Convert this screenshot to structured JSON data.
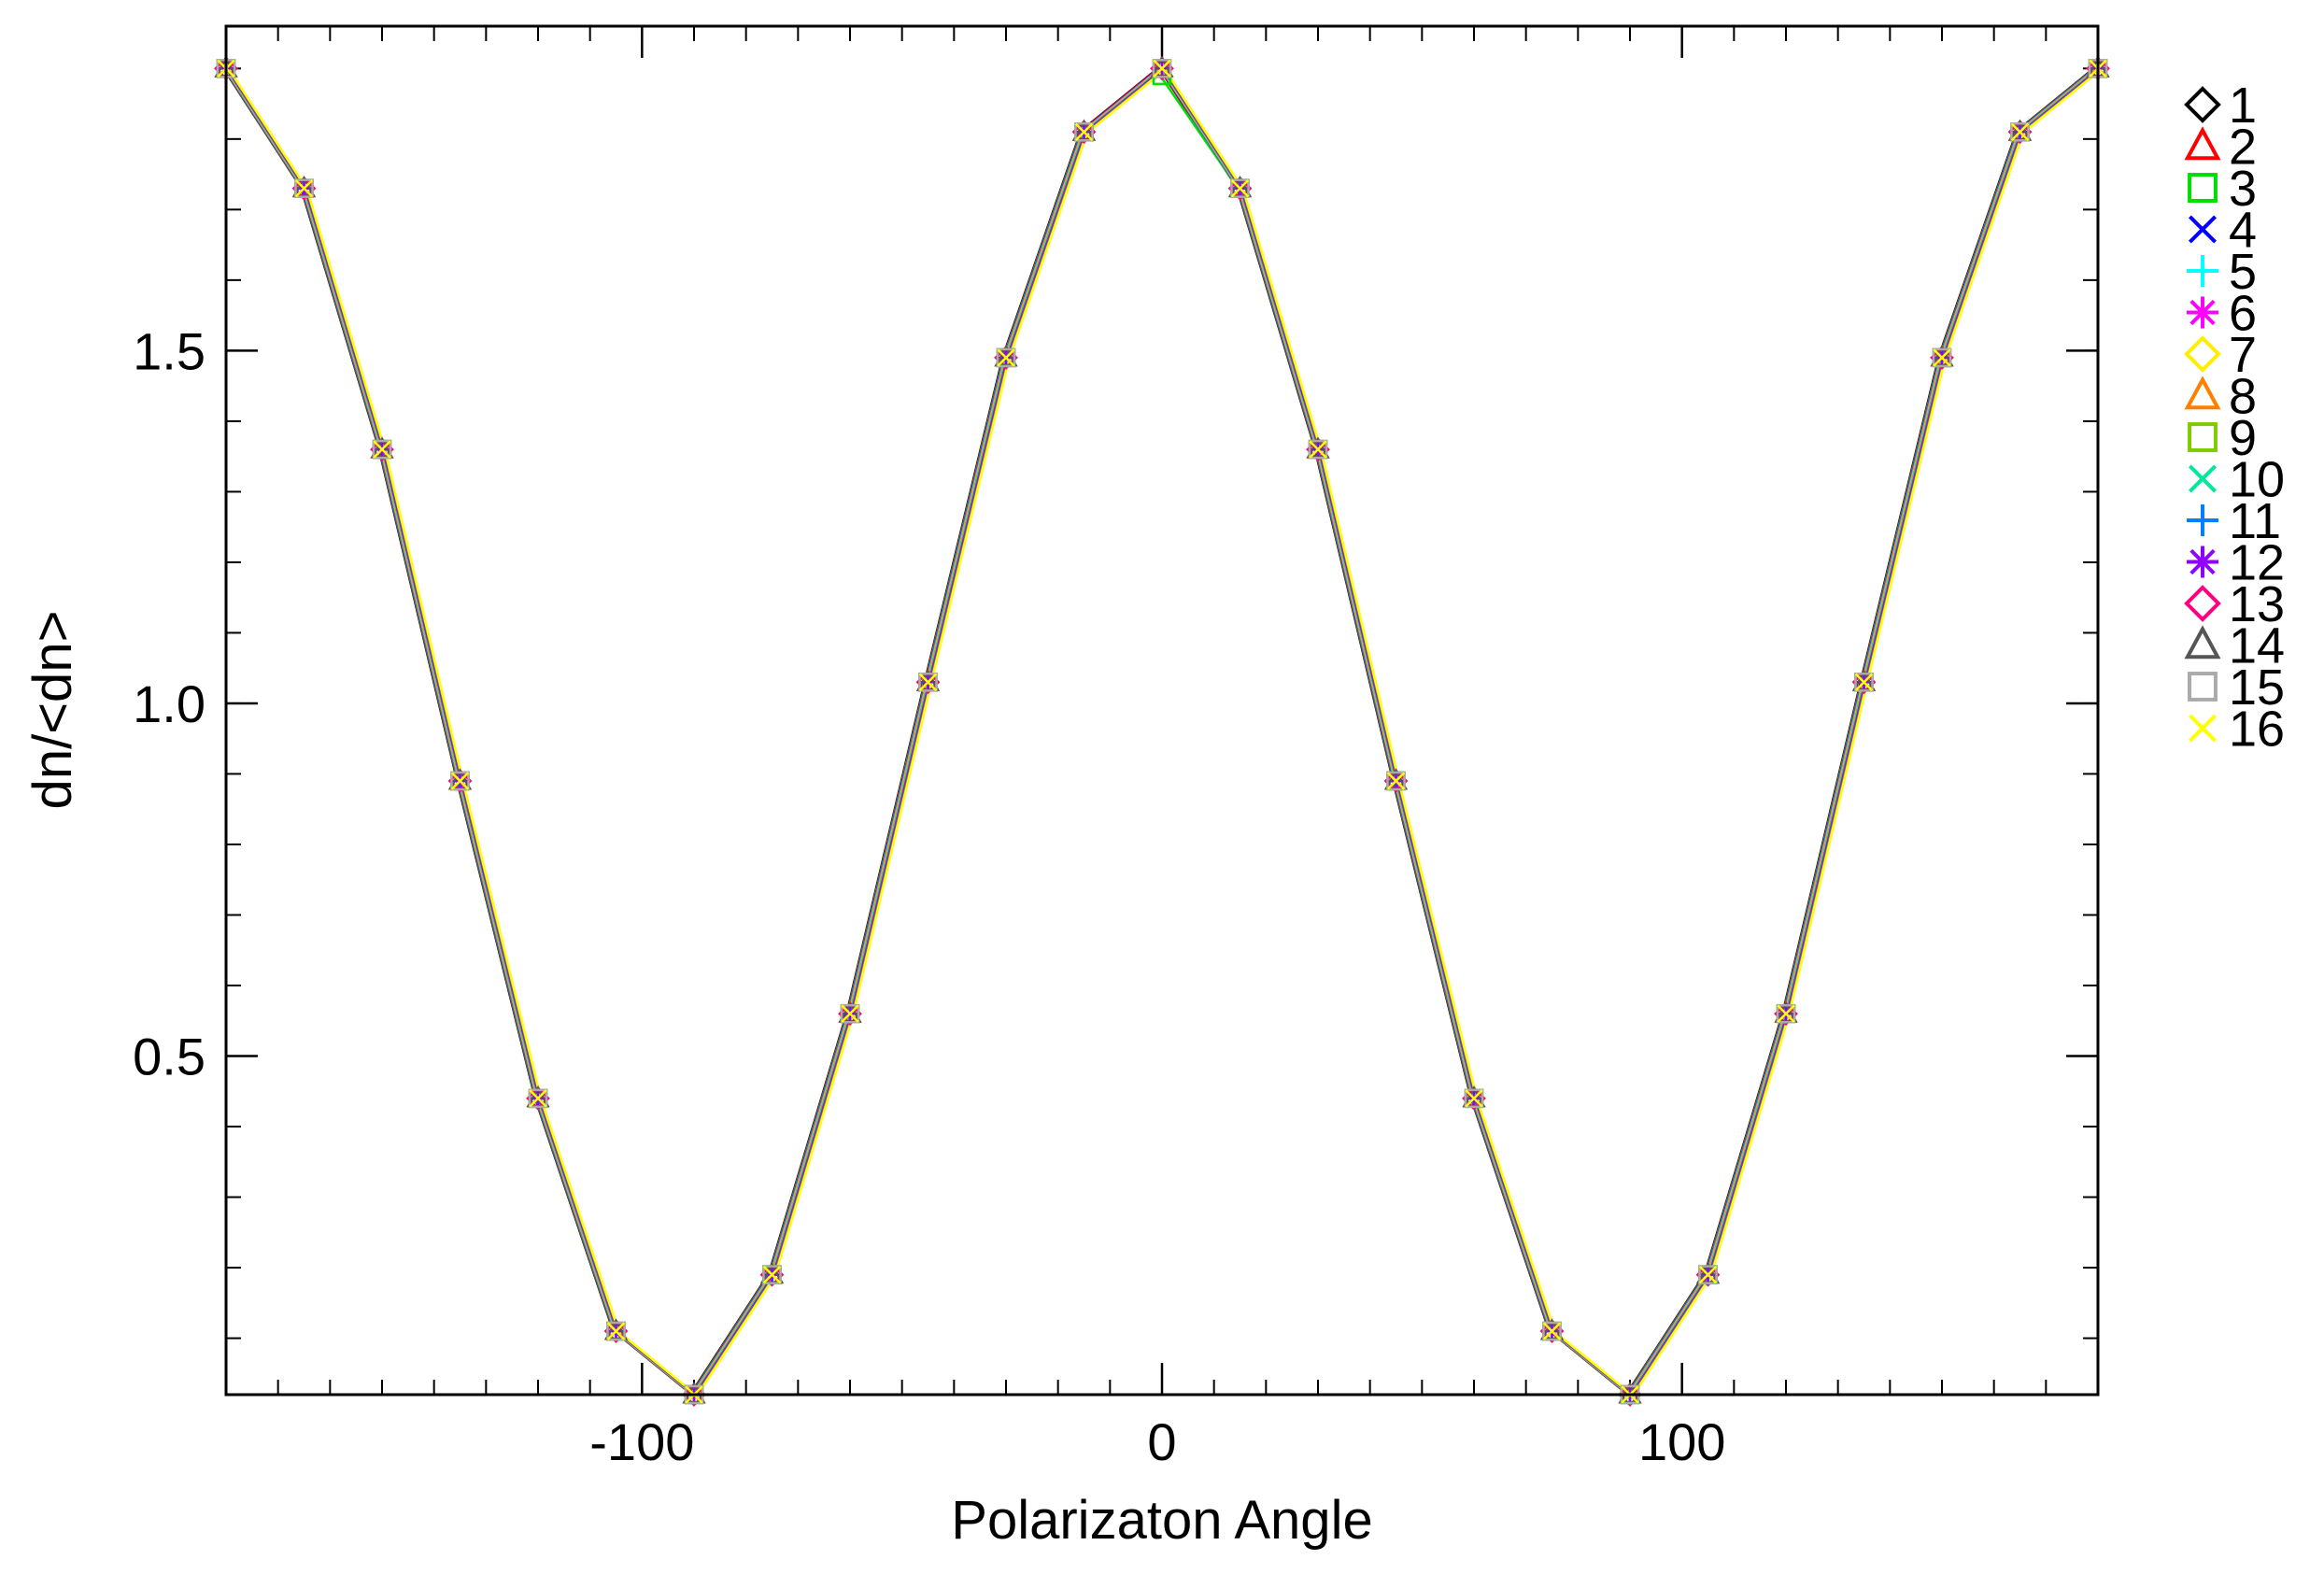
{
  "chart_data": {
    "type": "line",
    "xlabel": "Polarizaton Angle",
    "ylabel": "dn/<dn>",
    "xlim": [
      -180,
      180
    ],
    "ylim": [
      0.02,
      1.96
    ],
    "x_ticks": [
      -100,
      0,
      100
    ],
    "x_tick_labels": [
      "-100",
      "0",
      "100"
    ],
    "y_ticks": [
      0.5,
      1.0,
      1.5
    ],
    "y_tick_labels": [
      "0.5",
      "1.0",
      "1.5"
    ],
    "x_minor_step": 10,
    "y_minor_step": 0.1,
    "grid": false,
    "legend_position": "right, outside plot",
    "x": [
      -180,
      -165,
      -150,
      -135,
      -120,
      -105,
      -90,
      -75,
      -60,
      -45,
      -30,
      -15,
      0,
      15,
      30,
      45,
      60,
      75,
      90,
      105,
      120,
      135,
      150,
      165,
      180
    ],
    "series": [
      {
        "name": "1",
        "color": "#000000",
        "marker": "diamond",
        "values": [
          1.9,
          1.73,
          1.36,
          0.89,
          0.44,
          0.11,
          0.02,
          0.19,
          0.56,
          1.03,
          1.49,
          1.81,
          1.9,
          1.73,
          1.36,
          0.89,
          0.44,
          0.11,
          0.02,
          0.19,
          0.56,
          1.03,
          1.49,
          1.81,
          1.9
        ]
      },
      {
        "name": "2",
        "color": "#ff0000",
        "marker": "triangle",
        "values": [
          1.9,
          1.73,
          1.36,
          0.89,
          0.44,
          0.11,
          0.02,
          0.19,
          0.56,
          1.03,
          1.49,
          1.81,
          1.9,
          1.73,
          1.36,
          0.89,
          0.44,
          0.11,
          0.02,
          0.19,
          0.56,
          1.03,
          1.49,
          1.81,
          1.9
        ]
      },
      {
        "name": "3",
        "color": "#00dd00",
        "marker": "square",
        "values": [
          1.9,
          1.73,
          1.36,
          0.89,
          0.44,
          0.11,
          0.02,
          0.19,
          0.56,
          1.03,
          1.49,
          1.81,
          1.89,
          1.73,
          1.36,
          0.89,
          0.44,
          0.11,
          0.02,
          0.19,
          0.56,
          1.03,
          1.49,
          1.81,
          1.9
        ]
      },
      {
        "name": "4",
        "color": "#0000ff",
        "marker": "x",
        "values": [
          1.9,
          1.73,
          1.36,
          0.89,
          0.44,
          0.11,
          0.02,
          0.19,
          0.56,
          1.03,
          1.49,
          1.81,
          1.9,
          1.73,
          1.36,
          0.89,
          0.44,
          0.11,
          0.02,
          0.19,
          0.56,
          1.03,
          1.49,
          1.81,
          1.9
        ]
      },
      {
        "name": "5",
        "color": "#00ffff",
        "marker": "plus",
        "values": [
          1.9,
          1.73,
          1.36,
          0.89,
          0.44,
          0.11,
          0.02,
          0.19,
          0.56,
          1.03,
          1.49,
          1.81,
          1.9,
          1.73,
          1.36,
          0.89,
          0.44,
          0.11,
          0.02,
          0.19,
          0.56,
          1.03,
          1.49,
          1.81,
          1.9
        ]
      },
      {
        "name": "6",
        "color": "#ff00ff",
        "marker": "asterisk",
        "values": [
          1.9,
          1.73,
          1.36,
          0.89,
          0.44,
          0.11,
          0.02,
          0.19,
          0.56,
          1.03,
          1.49,
          1.81,
          1.9,
          1.73,
          1.36,
          0.89,
          0.44,
          0.11,
          0.02,
          0.19,
          0.56,
          1.03,
          1.49,
          1.81,
          1.9
        ]
      },
      {
        "name": "7",
        "color": "#ffee00",
        "marker": "diamond",
        "values": [
          1.9,
          1.73,
          1.36,
          0.89,
          0.44,
          0.11,
          0.02,
          0.19,
          0.56,
          1.03,
          1.49,
          1.81,
          1.9,
          1.73,
          1.36,
          0.89,
          0.44,
          0.11,
          0.02,
          0.19,
          0.56,
          1.03,
          1.49,
          1.81,
          1.9
        ]
      },
      {
        "name": "8",
        "color": "#ff7f00",
        "marker": "triangle",
        "values": [
          1.9,
          1.73,
          1.36,
          0.89,
          0.44,
          0.11,
          0.02,
          0.19,
          0.56,
          1.03,
          1.49,
          1.81,
          1.9,
          1.73,
          1.36,
          0.89,
          0.44,
          0.11,
          0.02,
          0.19,
          0.56,
          1.03,
          1.49,
          1.81,
          1.9
        ]
      },
      {
        "name": "9",
        "color": "#7fcc00",
        "marker": "square",
        "values": [
          1.9,
          1.73,
          1.36,
          0.89,
          0.44,
          0.11,
          0.02,
          0.19,
          0.56,
          1.03,
          1.49,
          1.81,
          1.9,
          1.73,
          1.36,
          0.89,
          0.44,
          0.11,
          0.02,
          0.19,
          0.56,
          1.03,
          1.49,
          1.81,
          1.9
        ]
      },
      {
        "name": "10",
        "color": "#00e89a",
        "marker": "x",
        "values": [
          1.9,
          1.73,
          1.36,
          0.89,
          0.44,
          0.11,
          0.02,
          0.19,
          0.56,
          1.03,
          1.49,
          1.81,
          1.9,
          1.73,
          1.36,
          0.89,
          0.44,
          0.11,
          0.02,
          0.19,
          0.56,
          1.03,
          1.49,
          1.81,
          1.9
        ]
      },
      {
        "name": "11",
        "color": "#007fff",
        "marker": "plus",
        "values": [
          1.9,
          1.73,
          1.36,
          0.89,
          0.44,
          0.11,
          0.02,
          0.19,
          0.56,
          1.03,
          1.49,
          1.81,
          1.9,
          1.73,
          1.36,
          0.89,
          0.44,
          0.11,
          0.02,
          0.19,
          0.56,
          1.03,
          1.49,
          1.81,
          1.9
        ]
      },
      {
        "name": "12",
        "color": "#8f00ff",
        "marker": "asterisk",
        "values": [
          1.9,
          1.73,
          1.36,
          0.89,
          0.44,
          0.11,
          0.02,
          0.19,
          0.56,
          1.03,
          1.49,
          1.81,
          1.9,
          1.73,
          1.36,
          0.89,
          0.44,
          0.11,
          0.02,
          0.19,
          0.56,
          1.03,
          1.49,
          1.81,
          1.9
        ]
      },
      {
        "name": "13",
        "color": "#ff0080",
        "marker": "diamond",
        "values": [
          1.9,
          1.73,
          1.36,
          0.89,
          0.44,
          0.11,
          0.02,
          0.19,
          0.56,
          1.03,
          1.49,
          1.81,
          1.9,
          1.73,
          1.36,
          0.89,
          0.44,
          0.11,
          0.02,
          0.19,
          0.56,
          1.03,
          1.49,
          1.81,
          1.9
        ]
      },
      {
        "name": "14",
        "color": "#555555",
        "marker": "triangle",
        "values": [
          1.9,
          1.73,
          1.36,
          0.89,
          0.44,
          0.11,
          0.02,
          0.19,
          0.56,
          1.03,
          1.49,
          1.81,
          1.9,
          1.73,
          1.36,
          0.89,
          0.44,
          0.11,
          0.02,
          0.19,
          0.56,
          1.03,
          1.49,
          1.81,
          1.9
        ]
      },
      {
        "name": "15",
        "color": "#aaaaaa",
        "marker": "square",
        "values": [
          1.9,
          1.73,
          1.36,
          0.89,
          0.44,
          0.11,
          0.02,
          0.19,
          0.56,
          1.03,
          1.49,
          1.81,
          1.9,
          1.73,
          1.36,
          0.89,
          0.44,
          0.11,
          0.02,
          0.19,
          0.56,
          1.03,
          1.49,
          1.81,
          1.9
        ]
      },
      {
        "name": "16",
        "color": "#ffff00",
        "marker": "x",
        "values": [
          1.9,
          1.73,
          1.36,
          0.89,
          0.44,
          0.11,
          0.02,
          0.19,
          0.56,
          1.03,
          1.49,
          1.81,
          1.9,
          1.73,
          1.36,
          0.89,
          0.44,
          0.11,
          0.02,
          0.19,
          0.56,
          1.03,
          1.49,
          1.81,
          1.9
        ]
      }
    ]
  }
}
